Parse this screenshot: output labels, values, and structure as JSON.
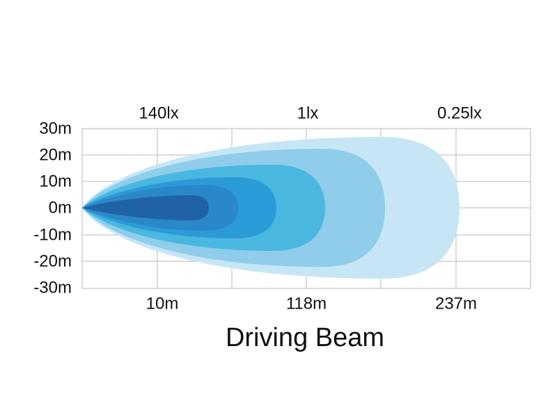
{
  "title": "Driving Beam",
  "y_axis": {
    "labels": [
      "30m",
      "20m",
      "10m",
      "0m",
      "-10m",
      "-20m",
      "-30m"
    ]
  },
  "top_labels": [
    "140lx",
    "1lx",
    "0.25lx"
  ],
  "bottom_labels": [
    "10m",
    "118m",
    "237m"
  ]
}
